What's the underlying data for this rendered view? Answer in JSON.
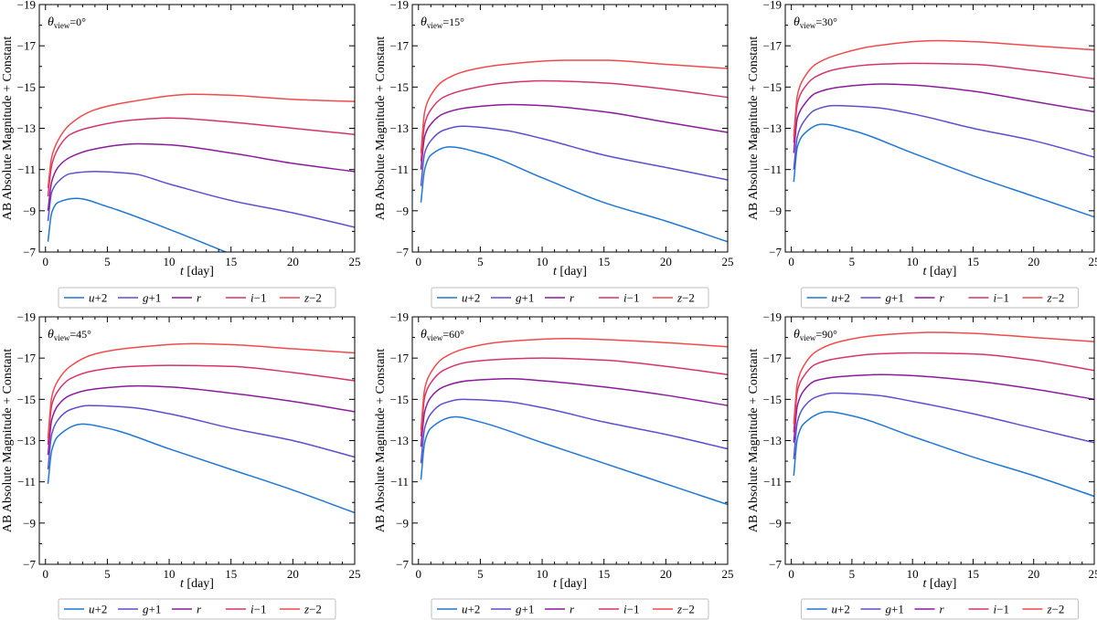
{
  "chart_data": {
    "type": "line",
    "shared": {
      "xlabel_var": "t",
      "xlabel_unit": "[day]",
      "ylabel": "AB Absolute Magnitude + Constant",
      "xlim": [
        -0.5,
        25
      ],
      "ylim": [
        -7,
        -19
      ],
      "xticks": [
        0,
        5,
        10,
        15,
        20,
        25
      ],
      "yticks": [
        -7,
        -9,
        -11,
        -13,
        -15,
        -17,
        -19
      ],
      "ytick_labels": [
        "−7",
        "−9",
        "−11",
        "−13",
        "−15",
        "−17",
        "−19"
      ],
      "view_symbol": "θ",
      "view_subscript": "view",
      "legend": [
        {
          "band": "u",
          "op": "+",
          "num": "2",
          "color": "#1f77d4"
        },
        {
          "band": "g",
          "op": "+",
          "num": "1",
          "color": "#5a4fcf"
        },
        {
          "band": "r",
          "op": "",
          "num": "",
          "color": "#8c1a9c"
        },
        {
          "band": "i",
          "op": "−",
          "num": "1",
          "color": "#d6336c"
        },
        {
          "band": "z",
          "op": "−",
          "num": "2",
          "color": "#f04a4a"
        }
      ]
    },
    "panels": [
      {
        "angle": "=0°",
        "series": [
          {
            "name": "u+2",
            "t": [
              0.2,
              0.5,
              1,
              2.5,
              5,
              10,
              15
            ],
            "mag": [
              -7.5,
              -8.9,
              -9.4,
              -9.6,
              -9.2,
              -8.1,
              -6.9
            ]
          },
          {
            "name": "g+1",
            "t": [
              0.2,
              0.5,
              1,
              2,
              4,
              7,
              10,
              15,
              20,
              25
            ],
            "mag": [
              -8.5,
              -9.9,
              -10.4,
              -10.8,
              -10.9,
              -10.8,
              -10.3,
              -9.5,
              -8.9,
              -8.2
            ]
          },
          {
            "name": "r",
            "t": [
              0.2,
              0.5,
              1,
              2,
              4,
              7.5,
              10,
              15,
              20,
              25
            ],
            "mag": [
              -9.0,
              -10.4,
              -11.1,
              -11.6,
              -12.0,
              -12.25,
              -12.2,
              -11.8,
              -11.3,
              -10.9
            ]
          },
          {
            "name": "i-1",
            "t": [
              0.2,
              0.5,
              1,
              2,
              4,
              7,
              10,
              15,
              20,
              25
            ],
            "mag": [
              -9.7,
              -11.2,
              -12.0,
              -12.7,
              -13.1,
              -13.4,
              -13.5,
              -13.3,
              -13.0,
              -12.7
            ]
          },
          {
            "name": "z-2",
            "t": [
              0.2,
              0.5,
              1,
              2,
              4,
              7,
              12,
              15,
              20,
              25
            ],
            "mag": [
              -10.1,
              -11.6,
              -12.4,
              -13.2,
              -13.9,
              -14.3,
              -14.65,
              -14.6,
              -14.4,
              -14.3
            ]
          }
        ]
      },
      {
        "angle": "=15°",
        "series": [
          {
            "name": "u+2",
            "t": [
              0.2,
              0.5,
              1,
              2.5,
              5,
              10,
              15,
              20,
              25
            ],
            "mag": [
              -9.4,
              -11.0,
              -11.7,
              -12.1,
              -11.8,
              -10.6,
              -9.4,
              -8.5,
              -7.5
            ]
          },
          {
            "name": "g+1",
            "t": [
              0.2,
              0.5,
              1,
              2,
              3.5,
              7,
              10,
              15,
              20,
              25
            ],
            "mag": [
              -10.2,
              -11.8,
              -12.4,
              -12.9,
              -13.1,
              -12.9,
              -12.5,
              -11.7,
              -11.1,
              -10.5
            ]
          },
          {
            "name": "r",
            "t": [
              0.2,
              0.5,
              1,
              2,
              4,
              7.5,
              10,
              15,
              20,
              25
            ],
            "mag": [
              -11.0,
              -12.6,
              -13.2,
              -13.7,
              -14.0,
              -14.15,
              -14.1,
              -13.8,
              -13.3,
              -12.8
            ]
          },
          {
            "name": "i-1",
            "t": [
              0.2,
              0.5,
              1,
              2,
              4,
              7,
              10,
              15,
              20,
              25
            ],
            "mag": [
              -11.4,
              -13.2,
              -13.9,
              -14.5,
              -14.9,
              -15.2,
              -15.3,
              -15.2,
              -14.9,
              -14.5
            ]
          },
          {
            "name": "z-2",
            "t": [
              0.2,
              0.5,
              1,
              2,
              4,
              7,
              12,
              15,
              20,
              25
            ],
            "mag": [
              -11.8,
              -13.8,
              -14.6,
              -15.3,
              -15.8,
              -16.1,
              -16.3,
              -16.3,
              -16.1,
              -15.9
            ]
          }
        ]
      },
      {
        "angle": "=30°",
        "series": [
          {
            "name": "u+2",
            "t": [
              0.2,
              0.5,
              1,
              2.5,
              5,
              10,
              15,
              20,
              25
            ],
            "mag": [
              -10.4,
              -12.1,
              -12.7,
              -13.2,
              -12.9,
              -11.8,
              -10.7,
              -9.7,
              -8.7
            ]
          },
          {
            "name": "g+1",
            "t": [
              0.2,
              0.5,
              1,
              2,
              3.5,
              7,
              10,
              15,
              20,
              25
            ],
            "mag": [
              -11.0,
              -12.6,
              -13.3,
              -13.9,
              -14.1,
              -14.0,
              -13.7,
              -13.0,
              -12.4,
              -11.6
            ]
          },
          {
            "name": "r",
            "t": [
              0.2,
              0.5,
              1,
              2,
              4,
              7.5,
              10,
              15,
              20,
              25
            ],
            "mag": [
              -11.8,
              -13.5,
              -14.1,
              -14.7,
              -15.0,
              -15.15,
              -15.1,
              -14.8,
              -14.3,
              -13.8
            ]
          },
          {
            "name": "i-1",
            "t": [
              0.2,
              0.5,
              1,
              2,
              4,
              7,
              10,
              15,
              20,
              25
            ],
            "mag": [
              -12.3,
              -14.2,
              -14.9,
              -15.5,
              -15.9,
              -16.1,
              -16.15,
              -16.1,
              -15.8,
              -15.4
            ]
          },
          {
            "name": "z-2",
            "t": [
              0.2,
              0.5,
              1,
              2,
              4,
              7,
              12,
              15,
              20,
              25
            ],
            "mag": [
              -12.6,
              -14.6,
              -15.4,
              -16.1,
              -16.6,
              -17.0,
              -17.25,
              -17.2,
              -17.0,
              -16.8
            ]
          }
        ]
      },
      {
        "angle": "=45°",
        "series": [
          {
            "name": "u+2",
            "t": [
              0.2,
              0.5,
              1,
              3,
              5,
              10,
              15,
              20,
              25
            ],
            "mag": [
              -10.9,
              -12.5,
              -13.2,
              -13.8,
              -13.6,
              -12.6,
              -11.6,
              -10.6,
              -9.5
            ]
          },
          {
            "name": "g+1",
            "t": [
              0.2,
              0.5,
              1,
              2,
              3.5,
              7,
              10,
              15,
              20,
              25
            ],
            "mag": [
              -11.6,
              -13.3,
              -14.0,
              -14.5,
              -14.7,
              -14.6,
              -14.3,
              -13.6,
              -13.0,
              -12.2
            ]
          },
          {
            "name": "r",
            "t": [
              0.2,
              0.5,
              1,
              2,
              4,
              7.5,
              10,
              15,
              20,
              25
            ],
            "mag": [
              -12.3,
              -14.0,
              -14.7,
              -15.2,
              -15.5,
              -15.65,
              -15.6,
              -15.3,
              -14.9,
              -14.4
            ]
          },
          {
            "name": "i-1",
            "t": [
              0.2,
              0.5,
              1,
              2,
              4,
              7,
              10,
              15,
              20,
              25
            ],
            "mag": [
              -12.8,
              -14.7,
              -15.4,
              -16.0,
              -16.4,
              -16.6,
              -16.65,
              -16.6,
              -16.3,
              -15.9
            ]
          },
          {
            "name": "z-2",
            "t": [
              0.2,
              0.5,
              1,
              2,
              4,
              7,
              12,
              15,
              20,
              25
            ],
            "mag": [
              -13.1,
              -15.1,
              -15.9,
              -16.6,
              -17.2,
              -17.5,
              -17.7,
              -17.65,
              -17.45,
              -17.25
            ]
          }
        ]
      },
      {
        "angle": "=60°",
        "series": [
          {
            "name": "u+2",
            "t": [
              0.2,
              0.5,
              1,
              3,
              5,
              10,
              15,
              20,
              25
            ],
            "mag": [
              -11.1,
              -12.9,
              -13.6,
              -14.15,
              -13.9,
              -12.9,
              -11.9,
              -10.9,
              -9.9
            ]
          },
          {
            "name": "g+1",
            "t": [
              0.2,
              0.5,
              1,
              2,
              3.5,
              7,
              10,
              15,
              20,
              25
            ],
            "mag": [
              -11.9,
              -13.6,
              -14.3,
              -14.8,
              -15.0,
              -14.9,
              -14.6,
              -13.9,
              -13.3,
              -12.6
            ]
          },
          {
            "name": "r",
            "t": [
              0.2,
              0.5,
              1,
              2,
              4,
              7.5,
              10,
              15,
              20,
              25
            ],
            "mag": [
              -12.7,
              -14.4,
              -15.1,
              -15.6,
              -15.9,
              -16.0,
              -15.9,
              -15.6,
              -15.2,
              -14.7
            ]
          },
          {
            "name": "i-1",
            "t": [
              0.2,
              0.5,
              1,
              2,
              4,
              7,
              10,
              15,
              20,
              25
            ],
            "mag": [
              -13.2,
              -15.1,
              -15.8,
              -16.4,
              -16.8,
              -16.95,
              -17.0,
              -16.9,
              -16.6,
              -16.2
            ]
          },
          {
            "name": "z-2",
            "t": [
              0.2,
              0.5,
              1,
              2,
              4,
              7,
              12,
              15,
              20,
              25
            ],
            "mag": [
              -13.5,
              -15.5,
              -16.3,
              -17.0,
              -17.5,
              -17.8,
              -17.95,
              -17.9,
              -17.75,
              -17.55
            ]
          }
        ]
      },
      {
        "angle": "=90°",
        "series": [
          {
            "name": "u+2",
            "t": [
              0.2,
              0.5,
              1,
              3,
              5,
              10,
              15,
              20,
              25
            ],
            "mag": [
              -11.3,
              -13.1,
              -13.8,
              -14.4,
              -14.2,
              -13.2,
              -12.2,
              -11.3,
              -10.3
            ]
          },
          {
            "name": "g+1",
            "t": [
              0.2,
              0.5,
              1,
              2,
              3.5,
              7,
              10,
              15,
              20,
              25
            ],
            "mag": [
              -12.1,
              -13.9,
              -14.6,
              -15.1,
              -15.3,
              -15.2,
              -14.9,
              -14.3,
              -13.6,
              -12.9
            ]
          },
          {
            "name": "r",
            "t": [
              0.2,
              0.5,
              1,
              2,
              4,
              7.5,
              10,
              15,
              20,
              25
            ],
            "mag": [
              -12.9,
              -14.7,
              -15.4,
              -15.9,
              -16.1,
              -16.2,
              -16.15,
              -15.9,
              -15.5,
              -15.0
            ]
          },
          {
            "name": "i-1",
            "t": [
              0.2,
              0.5,
              1,
              2,
              4,
              7,
              10,
              15,
              20,
              25
            ],
            "mag": [
              -13.4,
              -15.4,
              -16.1,
              -16.7,
              -17.0,
              -17.2,
              -17.25,
              -17.2,
              -16.9,
              -16.4
            ]
          },
          {
            "name": "z-2",
            "t": [
              0.2,
              0.5,
              1,
              2,
              4,
              7,
              12,
              15,
              20,
              25
            ],
            "mag": [
              -13.8,
              -15.8,
              -16.6,
              -17.3,
              -17.8,
              -18.1,
              -18.25,
              -18.2,
              -18.0,
              -17.8
            ]
          }
        ]
      }
    ]
  }
}
